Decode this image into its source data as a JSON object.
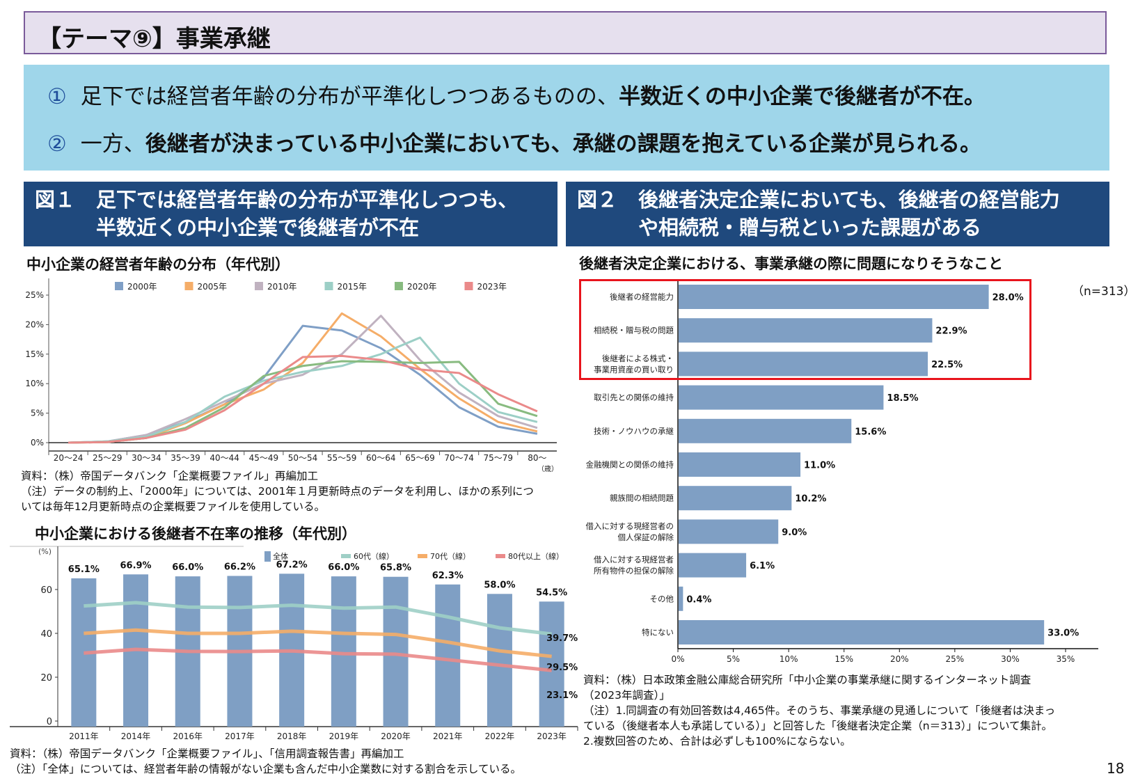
{
  "title": "【テーマ⑨】事業承継",
  "summary": [
    {
      "num": "①",
      "plain": "足下では経営者年齢の分布が平準化しつつあるものの、",
      "bold": "半数近くの中小企業で後継者が不在。",
      "tail": ""
    },
    {
      "num": "②",
      "plain": "一方、",
      "bold": "後継者が決まっている中小企業においても、承継の課題を抱えている企業が見られる。",
      "tail": ""
    }
  ],
  "figure1": {
    "label": "図１",
    "heading_line1": "足下では経営者年齢の分布が平準化しつつも、",
    "heading_line2": "半数近くの中小企業で後継者が不在"
  },
  "figure2": {
    "label": "図２",
    "heading_line1": "後継者決定企業においても、後継者の経営能力",
    "heading_line2": "や相続税・贈与税といった課題がある"
  },
  "chart1_notes": {
    "source": "資料：（株）帝国データバンク「企業概要ファイル」再編加工",
    "note_line1": "（注）データの制約上、「2000年」については、2001年１月更新時点のデータを利用し、ほかの系列につ",
    "note_line2": "いては毎年12月更新時点の企業概要ファイルを使用している。"
  },
  "chart2_notes": {
    "source": "資料：（株）帝国データバンク「企業概要ファイル」、「信用調査報告書」再編加工",
    "note": "（注）「全体」については、経営者年齢の情報がない企業も含んだ中小企業数に対する割合を示している。"
  },
  "chart3_notes": {
    "source_line1": "資料：（株）日本政策金融公庫総合研究所「中小企業の事業承継に関するインターネット調査",
    "source_line2": "（2023年調査）」",
    "note_line1": "（注）1.同調査の有効回答数は4,465件。そのうち、事業承継の見通しについて「後継者は決まっ",
    "note_line2": "ている（後継者本人も承諾している）」と回答した「後継者決定企業（n＝313）」について集計。",
    "note_line3": "2.複数回答のため、合計は必ずしも100%にならない。"
  },
  "page_number": "18",
  "chart_data": [
    {
      "type": "line",
      "title": "中小企業の経営者年齢の分布（年代別）",
      "xlabel": "（歳）",
      "ylabel": "",
      "categories": [
        "20～24",
        "25～29",
        "30～34",
        "35～39",
        "40～44",
        "45～49",
        "50～54",
        "55～59",
        "60～64",
        "65～69",
        "70～74",
        "75～79",
        "80～"
      ],
      "ylim": [
        0,
        25
      ],
      "yticks": [
        "0%",
        "5%",
        "10%",
        "15%",
        "20%",
        "25%"
      ],
      "legend": "top",
      "grid": false,
      "series": [
        {
          "name": "2000年",
          "color": "#7f9fc6",
          "values": [
            0,
            0.2,
            1.3,
            3.5,
            6.5,
            11,
            19.8,
            19,
            16,
            11.5,
            6,
            2.7,
            1.5
          ]
        },
        {
          "name": "2005年",
          "color": "#f5ad68",
          "values": [
            0,
            0.1,
            0.8,
            3.3,
            6.5,
            9,
            13.5,
            21.9,
            18,
            12.5,
            7.5,
            3.5,
            1.9
          ]
        },
        {
          "name": "2010年",
          "color": "#c0b2c0",
          "values": [
            0,
            0.2,
            1.3,
            4,
            7,
            10,
            11.5,
            15,
            21.5,
            14,
            8.5,
            4.5,
            2.5
          ]
        },
        {
          "name": "2015年",
          "color": "#9ccfc6",
          "values": [
            0,
            0.2,
            1,
            3.5,
            7.8,
            10.5,
            12,
            13,
            15,
            17.8,
            10,
            5.2,
            3.5
          ]
        },
        {
          "name": "2020年",
          "color": "#88bb80",
          "values": [
            0,
            0.1,
            0.8,
            2.5,
            6,
            11.3,
            13,
            13.8,
            13.7,
            13.5,
            13.7,
            6.6,
            4.5
          ]
        },
        {
          "name": "2023年",
          "color": "#ea8a8a",
          "values": [
            0,
            0.1,
            0.8,
            2.2,
            5.5,
            10,
            14.5,
            14.7,
            14,
            12.4,
            11.8,
            8.2,
            5.3
          ]
        }
      ]
    },
    {
      "type": "bar",
      "title": "中小企業における後継者不在率の推移（年代別）",
      "ylabel": "(%)",
      "categories": [
        "2011年",
        "2014年",
        "2016年",
        "2017年",
        "2018年",
        "2019年",
        "2020年",
        "2021年",
        "2022年",
        "2023年"
      ],
      "ylim": [
        0,
        70
      ],
      "yticks": [
        "0",
        "20",
        "40",
        "60"
      ],
      "legend": "top",
      "series": [
        {
          "name": "全体",
          "kind": "bar",
          "color": "#7f9fc4",
          "values": [
            65.1,
            66.9,
            66.0,
            66.2,
            67.2,
            66.0,
            65.8,
            62.3,
            58.0,
            54.5
          ],
          "labels": [
            "65.1%",
            "66.9%",
            "66.0%",
            "66.2%",
            "67.2%",
            "66.0%",
            "65.8%",
            "62.3%",
            "58.0%",
            "54.5%"
          ]
        },
        {
          "name": "60代（線）",
          "kind": "line",
          "color": "#9fcfc6",
          "values": [
            52.5,
            54,
            52,
            51.8,
            52.8,
            51.5,
            52,
            47.5,
            42.5,
            39.7
          ],
          "end_label": "39.7%"
        },
        {
          "name": "70代（線）",
          "kind": "line",
          "color": "#f5ad68",
          "values": [
            40,
            41.5,
            40,
            40,
            41,
            40,
            39.5,
            36,
            32,
            29.5
          ],
          "end_label": "29.5%"
        },
        {
          "name": "80代以上（線）",
          "kind": "line",
          "color": "#ea8a8a",
          "values": [
            31,
            32.7,
            31.8,
            31.7,
            32,
            30.7,
            30.5,
            28,
            25.5,
            23.1
          ],
          "end_label": "23.1%"
        }
      ]
    },
    {
      "type": "bar",
      "orientation": "horizontal",
      "title": "後継者決定企業における、事業承継の際に問題になりそうなこと",
      "annotation": "（n=313）",
      "xlim": [
        0,
        35
      ],
      "xticks": [
        "0%",
        "5%",
        "10%",
        "15%",
        "20%",
        "25%",
        "30%",
        "35%"
      ],
      "color": "#7f9fc4",
      "highlight_color": "#e8141c",
      "highlighted_count": 3,
      "categories": [
        [
          "後継者の経営能力"
        ],
        [
          "相続税・贈与税の問題"
        ],
        [
          "後継者による株式・",
          "事業用資産の買い取り"
        ],
        [
          "取引先との関係の維持"
        ],
        [
          "技術・ノウハウの承継"
        ],
        [
          "金融機関との関係の維持"
        ],
        [
          "親族間の相続問題"
        ],
        [
          "借入に対する現経営者の",
          "個人保証の解除"
        ],
        [
          "借入に対する現経営者",
          "所有物件の担保の解除"
        ],
        [
          "その他"
        ],
        [
          "特にない"
        ]
      ],
      "values": [
        28.0,
        22.9,
        22.5,
        18.5,
        15.6,
        11.0,
        10.2,
        9.0,
        6.1,
        0.4,
        33.0
      ],
      "labels": [
        "28.0%",
        "22.9%",
        "22.5%",
        "18.5%",
        "15.6%",
        "11.0%",
        "10.2%",
        "9.0%",
        "6.1%",
        "0.4%",
        "33.0%"
      ]
    }
  ]
}
